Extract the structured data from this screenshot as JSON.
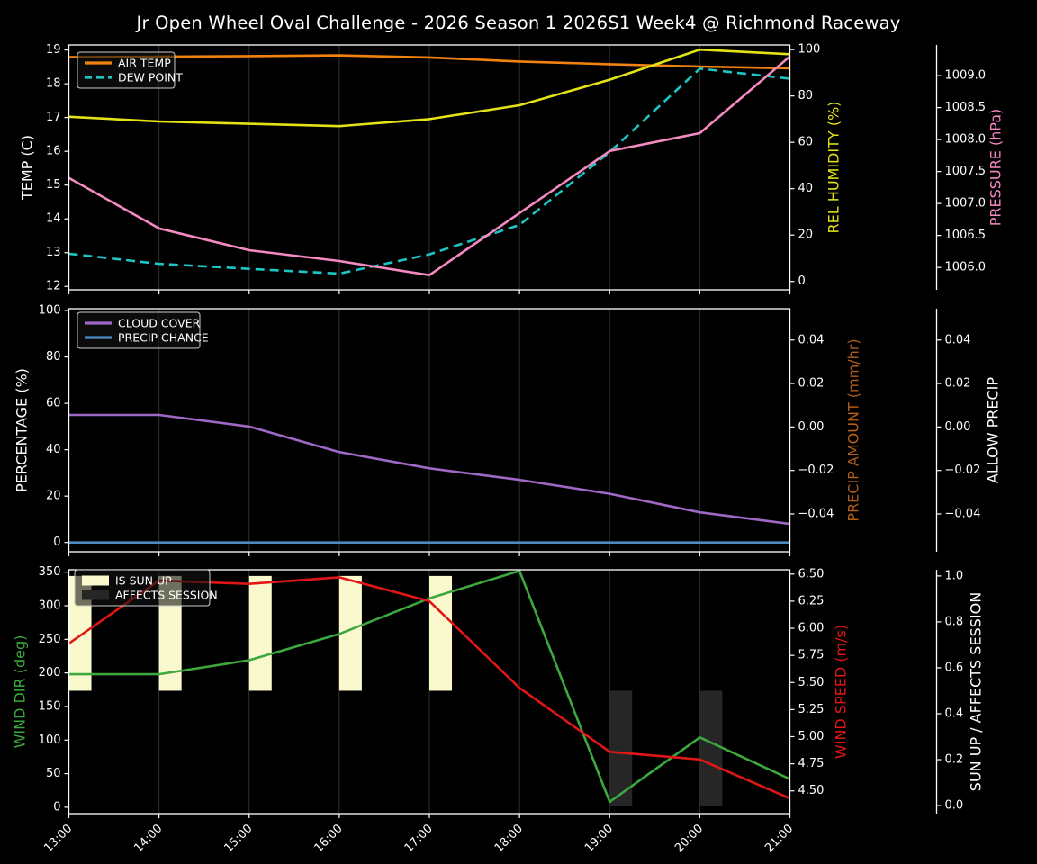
{
  "title": "Jr Open Wheel Oval Challenge - 2026 Season 1 2026S1 Week4 @ Richmond Raceway",
  "x_axis": {
    "labels": [
      "13:00",
      "14:00",
      "15:00",
      "16:00",
      "17:00",
      "18:00",
      "19:00",
      "20:00",
      "21:00"
    ],
    "hours": [
      13,
      14,
      15,
      16,
      17,
      18,
      19,
      20,
      21
    ]
  },
  "colors": {
    "background": "#000000",
    "spine": "#ffffff",
    "text": "#ffffff",
    "grid": "#303030",
    "air_temp": "#f2820f",
    "dew_point": "#1ec5c5",
    "rel_humidity": "#e3e316",
    "pressure": "#f589c1",
    "cloud_cover": "#9f68c6",
    "precip_chance": "#4d8ac0",
    "precip_amount_label": "#b05e1a",
    "wind_dir": "#3da83d",
    "wind_speed": "#e11717",
    "sun_up_bar": "#f9f9cd",
    "affects_session_bar": "#262626"
  },
  "chart_data": [
    {
      "name": "temperature-panel",
      "type": "line",
      "axes": {
        "left": {
          "title": "TEMP (C)",
          "color": "#ffffff",
          "range": [
            11.9,
            19.15
          ],
          "ticks": [
            12,
            13,
            14,
            15,
            16,
            17,
            18,
            19
          ],
          "decimals": 0
        },
        "right1": {
          "title": "REL HUMIDITY (%)",
          "color": "#e3e316",
          "range": [
            -3.6,
            102.0
          ],
          "ticks": [
            0,
            20,
            40,
            60,
            80,
            100
          ],
          "decimals": 0
        },
        "right2": {
          "title": "PRESSURE (hPa)",
          "color": "#f589c1",
          "range": [
            1005.65,
            1009.48
          ],
          "ticks": [
            1006.0,
            1006.5,
            1007.0,
            1007.5,
            1008.0,
            1008.5,
            1009.0
          ],
          "decimals": 1
        }
      },
      "series": [
        {
          "name": "AIR TEMP",
          "axis": "left",
          "color": "#f2820f",
          "dash": false,
          "values": [
            18.79,
            18.8,
            18.82,
            18.84,
            18.78,
            18.66,
            18.58,
            18.51,
            18.46
          ]
        },
        {
          "name": "DEW POINT",
          "axis": "left",
          "color": "#1ec5c5",
          "dash": true,
          "values": [
            12.97,
            12.67,
            12.52,
            12.38,
            12.95,
            13.82,
            15.98,
            18.45,
            18.15
          ]
        },
        {
          "name": "REL HUMIDITY",
          "axis": "right1",
          "color": "#e3e316",
          "dash": false,
          "values": [
            71,
            69,
            68,
            67,
            70,
            76,
            87,
            100,
            98
          ]
        },
        {
          "name": "PRESSURE",
          "axis": "right2",
          "color": "#f589c1",
          "dash": false,
          "values": [
            1007.4,
            1006.61,
            1006.27,
            1006.1,
            1005.88,
            1006.85,
            1007.82,
            1008.1,
            1009.3
          ]
        }
      ],
      "legend": [
        {
          "label": "AIR TEMP",
          "color": "#f2820f",
          "swatch": "line",
          "dash": false
        },
        {
          "label": "DEW POINT",
          "color": "#1ec5c5",
          "swatch": "line",
          "dash": true
        }
      ]
    },
    {
      "name": "precipitation-panel",
      "type": "line",
      "axes": {
        "left": {
          "title": "PERCENTAGE (%)",
          "color": "#ffffff",
          "range": [
            -4.0,
            100.8
          ],
          "ticks": [
            0,
            20,
            40,
            60,
            80,
            100
          ],
          "decimals": 0
        },
        "right1": {
          "title": "PRECIP AMOUNT (mm/hr)",
          "color": "#b05e1a",
          "range": [
            -0.0574,
            0.0544
          ],
          "ticks": [
            0.04,
            0.02,
            0.0,
            -0.02,
            -0.04
          ],
          "decimals": 2
        },
        "right2": {
          "title": "ALLOW PRECIP",
          "color": "#ffffff",
          "range": [
            -0.0574,
            0.0544
          ],
          "ticks": [
            0.04,
            0.02,
            0.0,
            -0.02,
            -0.04
          ],
          "decimals": 2
        }
      },
      "series": [
        {
          "name": "CLOUD COVER",
          "axis": "left",
          "color": "#9f68c6",
          "dash": false,
          "values": [
            55,
            55,
            50,
            39,
            32,
            27,
            21,
            13,
            8
          ]
        },
        {
          "name": "PRECIP CHANCE",
          "axis": "left",
          "color": "#4d8ac0",
          "dash": false,
          "values": [
            0,
            0,
            0,
            0,
            0,
            0,
            0,
            0,
            0
          ]
        }
      ],
      "legend": [
        {
          "label": "CLOUD COVER",
          "color": "#9f68c6",
          "swatch": "line",
          "dash": false
        },
        {
          "label": "PRECIP CHANCE",
          "color": "#4d8ac0",
          "swatch": "line",
          "dash": false
        }
      ]
    },
    {
      "name": "wind-panel",
      "type": "line",
      "axes": {
        "left": {
          "title": "WIND DIR (deg)",
          "color": "#3da83d",
          "range": [
            -9.5,
            353.6
          ],
          "ticks": [
            0,
            50,
            100,
            150,
            200,
            250,
            300,
            350
          ],
          "decimals": 0
        },
        "right1": {
          "title": "WIND SPEED (m/s)",
          "color": "#e11717",
          "range": [
            4.29,
            6.54
          ],
          "ticks": [
            4.5,
            4.75,
            5.0,
            5.25,
            5.5,
            5.75,
            6.0,
            6.25,
            6.5
          ],
          "decimals": 2
        },
        "right2": {
          "title": "SUN UP / AFFECTS SESSION",
          "color": "#ffffff",
          "range": [
            -0.035,
            1.027
          ],
          "ticks": [
            0.0,
            0.2,
            0.4,
            0.6,
            0.8,
            1.0
          ],
          "decimals": 1
        }
      },
      "bars": [
        {
          "name": "IS SUN UP",
          "axis": "right2",
          "color": "#f9f9cd",
          "base": 0.5,
          "top": 1.0,
          "width_hours": 0.25,
          "values": [
            1,
            1,
            1,
            1,
            1,
            0,
            0,
            0,
            0
          ]
        },
        {
          "name": "AFFECTS SESSION",
          "axis": "right2",
          "color": "#262626",
          "base": 0.0,
          "top": 0.5,
          "width_hours": 0.25,
          "values": [
            0,
            0,
            0,
            0,
            0,
            0,
            1,
            1,
            0
          ]
        }
      ],
      "series": [
        {
          "name": "WIND DIR",
          "axis": "left",
          "color": "#3da83d",
          "dash": false,
          "values": [
            198,
            198,
            219,
            258,
            311,
            352,
            8,
            104,
            42
          ]
        },
        {
          "name": "WIND SPEED",
          "axis": "right1",
          "color": "#e11717",
          "dash": false,
          "values": [
            5.86,
            6.44,
            6.41,
            6.47,
            6.25,
            5.45,
            4.86,
            4.79,
            4.43
          ]
        }
      ],
      "legend": [
        {
          "label": "IS SUN UP",
          "color": "#f9f9cd",
          "swatch": "patch"
        },
        {
          "label": "AFFECTS SESSION",
          "color": "#262626",
          "swatch": "patch"
        }
      ]
    }
  ]
}
